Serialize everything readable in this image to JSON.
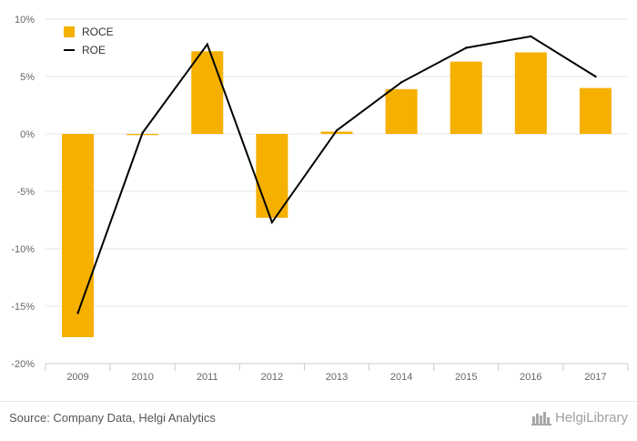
{
  "chart_data": {
    "type": "bar",
    "categories": [
      "2009",
      "2010",
      "2011",
      "2012",
      "2013",
      "2014",
      "2015",
      "2016",
      "2017"
    ],
    "series": [
      {
        "name": "ROCE",
        "type": "bar",
        "color": "#f5b000",
        "values": [
          -17.7,
          -0.1,
          7.2,
          -7.3,
          0.2,
          3.9,
          6.3,
          7.1,
          4.0
        ]
      },
      {
        "name": "ROE",
        "type": "line",
        "color": "#000000",
        "values": [
          -15.6,
          0.1,
          7.8,
          -7.7,
          0.3,
          4.5,
          7.5,
          8.5,
          5.0
        ]
      }
    ],
    "yticks": [
      "10%",
      "5%",
      "0%",
      "-5%",
      "-10%",
      "-15%",
      "-20%"
    ],
    "ylim": [
      -20,
      10
    ],
    "grid": true,
    "legend_position": "top-left"
  },
  "footer": {
    "source": "Source: Company Data, Helgi Analytics",
    "brand": "HelgiLibrary"
  },
  "colors": {
    "grid": "#e6e6e6",
    "axis_text": "#666666"
  }
}
